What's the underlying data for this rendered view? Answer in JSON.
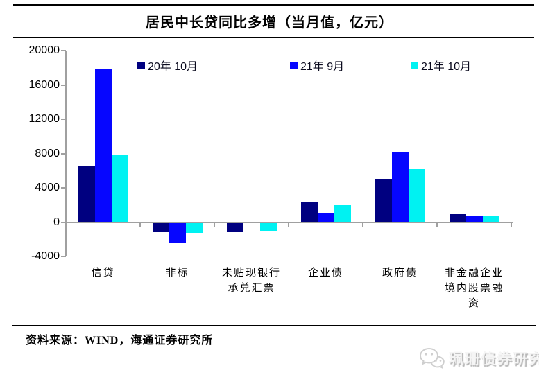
{
  "header": {
    "title": "居民中长贷同比多增（当月值，亿元）"
  },
  "footer": {
    "source_note": "资料来源：WIND，海通证券研究所"
  },
  "watermark": {
    "icon": "wechat-icon",
    "text": "珮珊债券研究"
  },
  "colors": {
    "series_navy": "#000080",
    "series_blue": "#0606ff",
    "series_cyan": "#00f2f2",
    "axis_gray": "#a0a0a0",
    "text_black": "#000000",
    "watermark_gray": "#d9d9d9"
  },
  "chart_data": {
    "type": "bar",
    "title": "居民中长贷同比多增（当月值，亿元）",
    "xlabel": "",
    "ylabel": "",
    "categories": [
      "信贷",
      "非标",
      "未贴现银行承兑汇票",
      "企业债",
      "政府债",
      "非金融企业境内股票融资"
    ],
    "category_label_lines": [
      [
        "信贷"
      ],
      [
        "非标"
      ],
      [
        "未贴现银行",
        "承兑汇票"
      ],
      [
        "企业债"
      ],
      [
        "政府债"
      ],
      [
        "非金融企业",
        "境内股票融",
        "资"
      ]
    ],
    "series": [
      {
        "name": "20年 10月",
        "color": "#000080",
        "values": [
          6600,
          -1100,
          -1100,
          2300,
          4950,
          950
        ]
      },
      {
        "name": "21年 9月",
        "color": "#0606ff",
        "values": [
          17800,
          -2300,
          0,
          1050,
          8150,
          750
        ]
      },
      {
        "name": "21年 10月",
        "color": "#00f2f2",
        "values": [
          7800,
          -1200,
          -1000,
          1950,
          6200,
          800
        ]
      }
    ],
    "ylim": [
      -4000,
      20000
    ],
    "yticks": [
      20000,
      16000,
      12000,
      8000,
      4000,
      0,
      -4000
    ],
    "grid": false,
    "legend_position": "top"
  }
}
